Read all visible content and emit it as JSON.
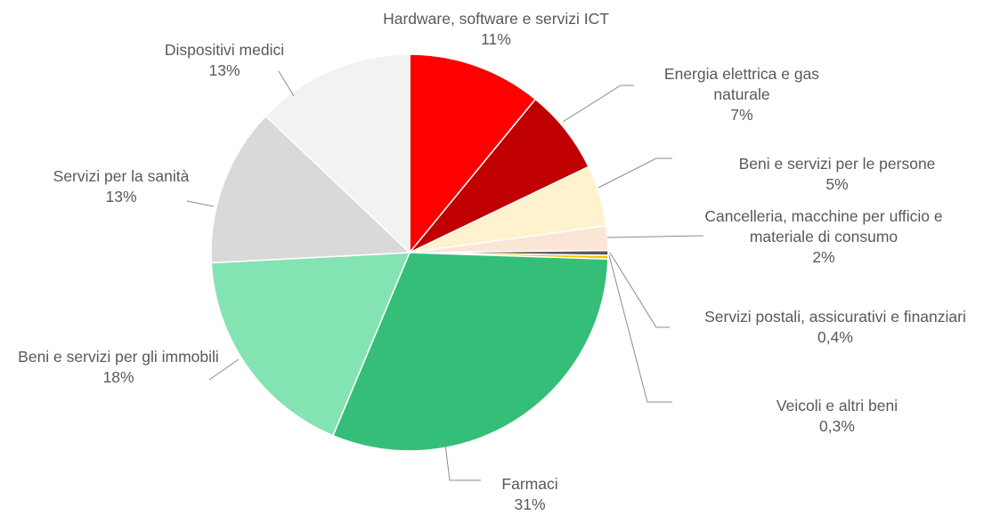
{
  "chart_data": {
    "type": "pie",
    "categories": [
      "Hardware, software e servizi ICT",
      "Energia elettrica e gas naturale",
      "Beni e servizi per le persone",
      "Cancelleria, macchine per ufficio e materiale di consumo",
      "Servizi postali, assicurativi e finanziari",
      "Veicoli e altri beni",
      "Farmaci",
      "Beni e servizi per gli immobili",
      "Servizi per la sanità",
      "Dispositivi medici"
    ],
    "values": [
      11,
      7,
      5,
      2,
      0.4,
      0.3,
      31,
      18,
      13,
      13
    ],
    "value_labels": [
      "11%",
      "7%",
      "5%",
      "2%",
      "0,4%",
      "0,3%",
      "31%",
      "18%",
      "13%",
      "13%"
    ],
    "colors": [
      "#ff0000",
      "#c00000",
      "#fff2cc",
      "#fbe5d6",
      "#595959",
      "#ffc000",
      "#35be78",
      "#84e3b3",
      "#d9d9d9",
      "#f2f2f2"
    ]
  }
}
